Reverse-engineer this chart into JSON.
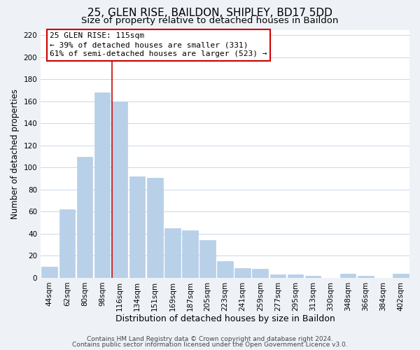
{
  "title1": "25, GLEN RISE, BAILDON, SHIPLEY, BD17 5DD",
  "title2": "Size of property relative to detached houses in Baildon",
  "xlabel": "Distribution of detached houses by size in Baildon",
  "ylabel": "Number of detached properties",
  "bar_labels": [
    "44sqm",
    "62sqm",
    "80sqm",
    "98sqm",
    "116sqm",
    "134sqm",
    "151sqm",
    "169sqm",
    "187sqm",
    "205sqm",
    "223sqm",
    "241sqm",
    "259sqm",
    "277sqm",
    "295sqm",
    "313sqm",
    "330sqm",
    "348sqm",
    "366sqm",
    "384sqm",
    "402sqm"
  ],
  "bar_values": [
    10,
    62,
    110,
    168,
    160,
    92,
    91,
    45,
    43,
    34,
    15,
    9,
    8,
    3,
    3,
    2,
    0,
    4,
    2,
    0,
    4
  ],
  "bar_color": "#b8d0e8",
  "bar_edge_color": "#b8d0e8",
  "vline_x_index": 4,
  "vline_color": "#cc0000",
  "ylim": [
    0,
    225
  ],
  "yticks": [
    0,
    20,
    40,
    60,
    80,
    100,
    120,
    140,
    160,
    180,
    200,
    220
  ],
  "annotation_title": "25 GLEN RISE: 115sqm",
  "annotation_line1": "← 39% of detached houses are smaller (331)",
  "annotation_line2": "61% of semi-detached houses are larger (523) →",
  "footer1": "Contains HM Land Registry data © Crown copyright and database right 2024.",
  "footer2": "Contains public sector information licensed under the Open Government Licence v3.0.",
  "bg_color": "#eef2f7",
  "plot_bg_color": "#ffffff",
  "grid_color": "#c8d8e8",
  "title1_fontsize": 11,
  "title2_fontsize": 9.5,
  "xlabel_fontsize": 9,
  "ylabel_fontsize": 8.5,
  "tick_fontsize": 7.5,
  "footer_fontsize": 6.5,
  "ann_fontsize": 8
}
